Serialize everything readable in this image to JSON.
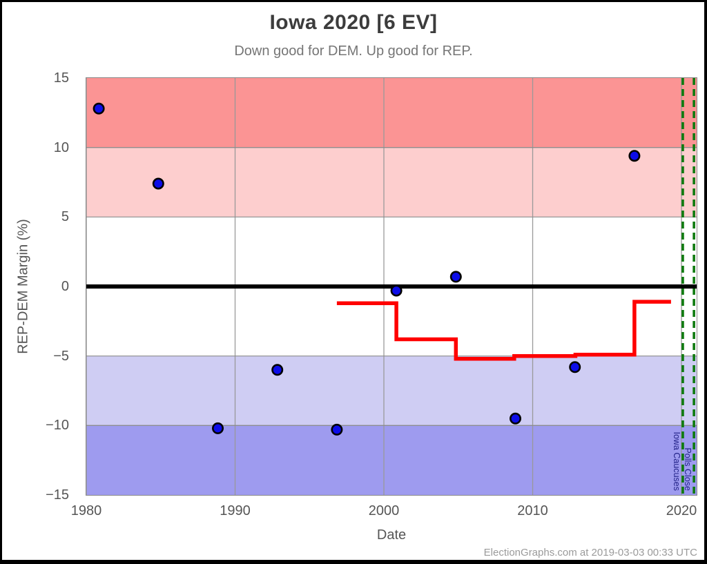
{
  "page": {
    "watermark": "ElectionGraphs.com at 2019-03-03 00:33 UTC"
  },
  "chart_data": {
    "type": "scatter",
    "title": "Iowa 2020 [6 EV]",
    "subtitle": "Down good for DEM. Up good for REP.",
    "xlabel": "Date",
    "ylabel": "REP-DEM Margin (%)",
    "xlim": [
      1980,
      2021.02
    ],
    "ylim": [
      -15,
      15
    ],
    "x_ticks": [
      1980,
      1990,
      2000,
      2010,
      2020
    ],
    "y_ticks": [
      15,
      10,
      5,
      0,
      -5,
      -10,
      -15
    ],
    "grid": true,
    "colors": {
      "grid": "#999999",
      "band_edge": "#8c8c8c",
      "zero_line": "#000000",
      "marker_fill": "#0d0de8",
      "marker_edge": "#000000",
      "poll_line": "#ff0000",
      "event_line": "#0e7a0e",
      "event_label": "#222288"
    },
    "bands": [
      {
        "from": 10,
        "to": 15,
        "color": "#fb9494"
      },
      {
        "from": 5,
        "to": 10,
        "color": "#fdcece"
      },
      {
        "from": -10,
        "to": -5,
        "color": "#cfcdf3"
      },
      {
        "from": -15,
        "to": -10,
        "color": "#9e9bef"
      }
    ],
    "election_result_points": [
      {
        "x": 1980.84,
        "y": 12.8
      },
      {
        "x": 1984.84,
        "y": 7.4
      },
      {
        "x": 1988.84,
        "y": -10.2
      },
      {
        "x": 1992.84,
        "y": -6.0
      },
      {
        "x": 1996.84,
        "y": -10.3
      },
      {
        "x": 2000.84,
        "y": -0.3
      },
      {
        "x": 2004.84,
        "y": 0.7
      },
      {
        "x": 2008.84,
        "y": -9.5
      },
      {
        "x": 2012.84,
        "y": -5.8
      },
      {
        "x": 2016.84,
        "y": 9.4
      }
    ],
    "poll_average_step_line": [
      [
        1996.84,
        -1.2
      ],
      [
        2000.84,
        -1.2
      ],
      [
        2000.84,
        -3.8
      ],
      [
        2004.84,
        -3.8
      ],
      [
        2004.84,
        -5.2
      ],
      [
        2008.76,
        -5.2
      ],
      [
        2008.76,
        -5.0
      ],
      [
        2012.87,
        -5.0
      ],
      [
        2012.87,
        -4.9
      ],
      [
        2016.84,
        -4.9
      ],
      [
        2016.84,
        -1.1
      ],
      [
        2019.3,
        -1.1
      ]
    ],
    "event_lines": [
      {
        "x": 2020.09,
        "label": "Iowa Caucuses"
      },
      {
        "x": 2020.84,
        "label": "Polls Close"
      }
    ]
  }
}
